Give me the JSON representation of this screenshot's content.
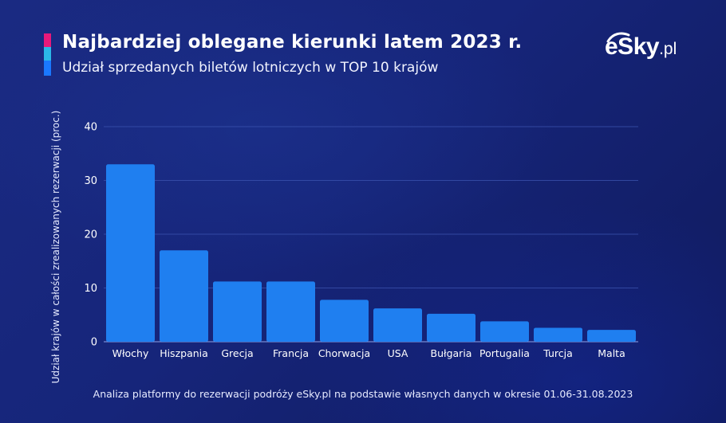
{
  "header": {
    "title": "Najbardziej oblegane kierunki latem 2023 r.",
    "subtitle": "Udział sprzedanych biletów lotniczych w TOP 10 krajów"
  },
  "logo": {
    "brand": "eSky",
    "tld": ".pl"
  },
  "footer": {
    "note": "Analiza platformy do rezerwacji podróży eSky.pl na podstawie własnych danych w okresie 01.06-31.08.2023"
  },
  "colors": {
    "bar": "#1f7ff0",
    "accent_pink": "#e8197a",
    "accent_cyan": "#2bb8e8",
    "accent_blue": "#1a78ff",
    "background": "#16257a"
  },
  "chart_data": {
    "type": "bar",
    "title": "Najbardziej oblegane kierunki latem 2023 r.",
    "subtitle": "Udział sprzedanych biletów lotniczych w TOP 10 krajów",
    "xlabel": "",
    "ylabel": "Udział krajów w całości zrealizowanych rezerwacji (proc.)",
    "categories": [
      "Włochy",
      "Hiszpania",
      "Grecja",
      "Francja",
      "Chorwacja",
      "USA",
      "Bułgaria",
      "Portugalia",
      "Turcja",
      "Malta"
    ],
    "values": [
      33,
      17,
      11.2,
      11.2,
      7.8,
      6.2,
      5.2,
      3.8,
      2.6,
      2.2
    ],
    "ylim": [
      0,
      40
    ],
    "yticks": [
      0,
      10,
      20,
      30,
      40
    ],
    "grid": true,
    "legend": "none"
  }
}
